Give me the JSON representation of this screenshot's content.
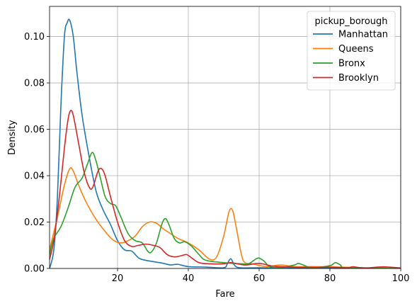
{
  "chart_data": {
    "type": "line",
    "xlabel": "Fare",
    "ylabel": "Density",
    "xlim": [
      0.8,
      100
    ],
    "ylim": [
      0,
      0.113
    ],
    "xticks": [
      20,
      40,
      60,
      80,
      100
    ],
    "yticks": [
      0.0,
      0.02,
      0.04,
      0.06,
      0.08,
      0.1
    ],
    "xtick_labels": [
      "20",
      "40",
      "60",
      "80",
      "100"
    ],
    "ytick_labels": [
      "0.00",
      "0.02",
      "0.04",
      "0.06",
      "0.08",
      "0.10"
    ],
    "grid": true,
    "legend": {
      "title": "pickup_borough",
      "placement": "top-right"
    },
    "series": [
      {
        "name": "Manhattan",
        "color": "#1f77b4",
        "points": [
          [
            0.8,
            0.0
          ],
          [
            2,
            0.008
          ],
          [
            3,
            0.03
          ],
          [
            4,
            0.07
          ],
          [
            5,
            0.1
          ],
          [
            5.8,
            0.106
          ],
          [
            6.5,
            0.107
          ],
          [
            7.5,
            0.1
          ],
          [
            8.5,
            0.085
          ],
          [
            10,
            0.066
          ],
          [
            12,
            0.048
          ],
          [
            14,
            0.033
          ],
          [
            16,
            0.025
          ],
          [
            18,
            0.019
          ],
          [
            20,
            0.012
          ],
          [
            22,
            0.008
          ],
          [
            24,
            0.0075
          ],
          [
            26,
            0.0045
          ],
          [
            28,
            0.0035
          ],
          [
            30,
            0.003
          ],
          [
            33,
            0.0022
          ],
          [
            35,
            0.0015
          ],
          [
            37,
            0.0018
          ],
          [
            40,
            0.0008
          ],
          [
            45,
            0.0006
          ],
          [
            50,
            0.0003
          ],
          [
            51,
            0.002
          ],
          [
            52,
            0.0042
          ],
          [
            53,
            0.0015
          ],
          [
            54.5,
            0.0003
          ],
          [
            60,
            0.0003
          ],
          [
            70,
            0.0001
          ],
          [
            80,
            0.0001
          ],
          [
            100,
            0.0
          ]
        ]
      },
      {
        "name": "Queens",
        "color": "#ff7f0e",
        "points": [
          [
            0.8,
            0.008
          ],
          [
            3,
            0.022
          ],
          [
            5,
            0.036
          ],
          [
            6.5,
            0.043
          ],
          [
            7.5,
            0.042
          ],
          [
            9,
            0.036
          ],
          [
            11,
            0.029
          ],
          [
            14,
            0.021
          ],
          [
            17,
            0.015
          ],
          [
            19,
            0.012
          ],
          [
            21,
            0.011
          ],
          [
            23,
            0.012
          ],
          [
            25,
            0.014
          ],
          [
            27,
            0.018
          ],
          [
            29,
            0.02
          ],
          [
            31,
            0.0195
          ],
          [
            33,
            0.017
          ],
          [
            35,
            0.015
          ],
          [
            37,
            0.013
          ],
          [
            40,
            0.011
          ],
          [
            43,
            0.008
          ],
          [
            46,
            0.004
          ],
          [
            48,
            0.005
          ],
          [
            50,
            0.014
          ],
          [
            51.5,
            0.0245
          ],
          [
            52.5,
            0.025
          ],
          [
            53.5,
            0.018
          ],
          [
            55,
            0.006
          ],
          [
            56,
            0.0025
          ],
          [
            58,
            0.002
          ],
          [
            62,
            0.0008
          ],
          [
            66,
            0.0015
          ],
          [
            70,
            0.0008
          ],
          [
            75,
            0.0008
          ],
          [
            80,
            0.0007
          ],
          [
            85,
            0.0005
          ],
          [
            90,
            0.0003
          ],
          [
            100,
            0.0001
          ]
        ]
      },
      {
        "name": "Bronx",
        "color": "#2ca02c",
        "points": [
          [
            0.8,
            0.006
          ],
          [
            2,
            0.013
          ],
          [
            4,
            0.018
          ],
          [
            6,
            0.026
          ],
          [
            8,
            0.035
          ],
          [
            10,
            0.039
          ],
          [
            11.5,
            0.045
          ],
          [
            12.8,
            0.05
          ],
          [
            13.8,
            0.047
          ],
          [
            15,
            0.04
          ],
          [
            16.5,
            0.031
          ],
          [
            18,
            0.028
          ],
          [
            19.5,
            0.027
          ],
          [
            21,
            0.022
          ],
          [
            23,
            0.015
          ],
          [
            25,
            0.012
          ],
          [
            27,
            0.011
          ],
          [
            28.5,
            0.0075
          ],
          [
            29.5,
            0.007
          ],
          [
            31,
            0.011
          ],
          [
            32.5,
            0.019
          ],
          [
            33.5,
            0.0215
          ],
          [
            34.5,
            0.019
          ],
          [
            36,
            0.013
          ],
          [
            37.5,
            0.011
          ],
          [
            39,
            0.0115
          ],
          [
            41,
            0.0095
          ],
          [
            43,
            0.006
          ],
          [
            45,
            0.0035
          ],
          [
            50,
            0.0025
          ],
          [
            55,
            0.002
          ],
          [
            57,
            0.002
          ],
          [
            59,
            0.004
          ],
          [
            60,
            0.0045
          ],
          [
            61.5,
            0.003
          ],
          [
            63,
            0.0008
          ],
          [
            66,
            0.0004
          ],
          [
            70,
            0.0015
          ],
          [
            71,
            0.0022
          ],
          [
            72.5,
            0.0015
          ],
          [
            75,
            0.0003
          ],
          [
            80,
            0.0012
          ],
          [
            81.5,
            0.0025
          ],
          [
            83,
            0.0015
          ],
          [
            85,
            0.0002
          ],
          [
            100,
            0.0
          ]
        ]
      },
      {
        "name": "Brooklyn",
        "color": "#d62728",
        "points": [
          [
            0.8,
            0.004
          ],
          [
            2,
            0.012
          ],
          [
            3.5,
            0.03
          ],
          [
            5,
            0.052
          ],
          [
            6,
            0.064
          ],
          [
            6.7,
            0.068
          ],
          [
            7.5,
            0.066
          ],
          [
            9,
            0.054
          ],
          [
            10.5,
            0.042
          ],
          [
            12,
            0.035
          ],
          [
            13,
            0.035
          ],
          [
            14.5,
            0.042
          ],
          [
            15.5,
            0.043
          ],
          [
            16.5,
            0.04
          ],
          [
            18,
            0.031
          ],
          [
            20,
            0.02
          ],
          [
            22,
            0.012
          ],
          [
            24,
            0.0095
          ],
          [
            26,
            0.01
          ],
          [
            28,
            0.0105
          ],
          [
            30,
            0.01
          ],
          [
            32,
            0.009
          ],
          [
            34,
            0.006
          ],
          [
            36,
            0.005
          ],
          [
            38,
            0.0055
          ],
          [
            39.5,
            0.006
          ],
          [
            41,
            0.0045
          ],
          [
            43,
            0.0025
          ],
          [
            46,
            0.002
          ],
          [
            50,
            0.002
          ],
          [
            52,
            0.0025
          ],
          [
            56,
            0.0015
          ],
          [
            60,
            0.0022
          ],
          [
            64,
            0.001
          ],
          [
            70,
            0.0005
          ],
          [
            80,
            0.0005
          ],
          [
            85,
            0.0003
          ],
          [
            86.5,
            0.0007
          ],
          [
            90,
            0.0002
          ],
          [
            95,
            0.0007
          ],
          [
            100,
            0.0002
          ]
        ]
      }
    ]
  }
}
